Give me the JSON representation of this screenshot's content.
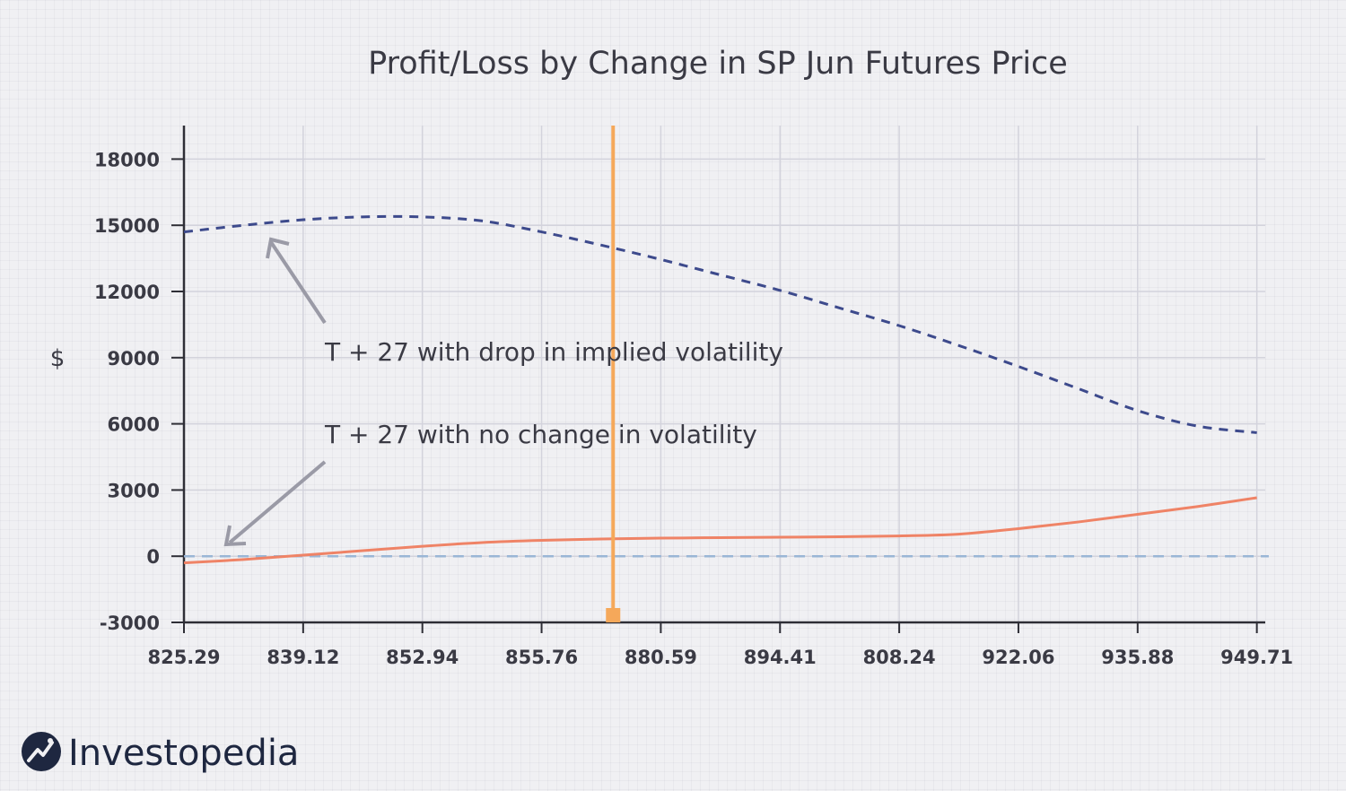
{
  "chart_data": {
    "type": "line",
    "title": "Profit/Loss by Change in SP Jun Futures Price",
    "xlabel": "",
    "ylabel": "$",
    "x_ticks": [
      "825.29",
      "839.12",
      "852.94",
      "855.76",
      "880.59",
      "894.41",
      "808.24",
      "922.06",
      "935.88",
      "949.71"
    ],
    "y_ticks": [
      18000,
      15000,
      12000,
      9000,
      6000,
      3000,
      0,
      -3000
    ],
    "ylim": [
      -3000,
      19000
    ],
    "grid": true,
    "marker_line": {
      "x_index": 3.6,
      "color": "#f5a85a"
    },
    "series": [
      {
        "key": "drop_iv",
        "style": "dashed",
        "color": "#3d4a8c",
        "x_index": [
          0,
          0.5,
          1,
          1.5,
          2,
          2.5,
          3,
          3.5,
          4,
          4.5,
          5,
          5.5,
          6,
          6.5,
          7,
          7.5,
          8,
          8.5,
          9
        ],
        "values": [
          14700,
          15000,
          15250,
          15380,
          15380,
          15200,
          14700,
          14100,
          13450,
          12750,
          12050,
          11250,
          10450,
          9550,
          8600,
          7600,
          6600,
          5900,
          5600
        ]
      },
      {
        "key": "no_change",
        "style": "solid",
        "color": "#ef8366",
        "x_index": [
          0,
          0.5,
          1,
          1.5,
          2,
          2.5,
          3,
          3.5,
          4,
          4.5,
          5,
          5.5,
          6,
          6.5,
          7,
          7.5,
          8,
          8.5,
          9
        ],
        "values": [
          -300,
          -150,
          50,
          250,
          450,
          620,
          720,
          780,
          820,
          840,
          860,
          880,
          920,
          1000,
          1250,
          1550,
          1900,
          2250,
          2650
        ]
      },
      {
        "key": "zero_line",
        "style": "dashed",
        "color": "#9ab6d6",
        "x_index": [
          0,
          9.1
        ],
        "values": [
          0,
          0
        ]
      }
    ],
    "annotations": [
      {
        "key": "drop",
        "text": "T + 27 with drop in implied volatility"
      },
      {
        "key": "nochange",
        "text": "T + 27 with no change in volatility"
      }
    ]
  },
  "brand": {
    "name": "Investopedia"
  }
}
